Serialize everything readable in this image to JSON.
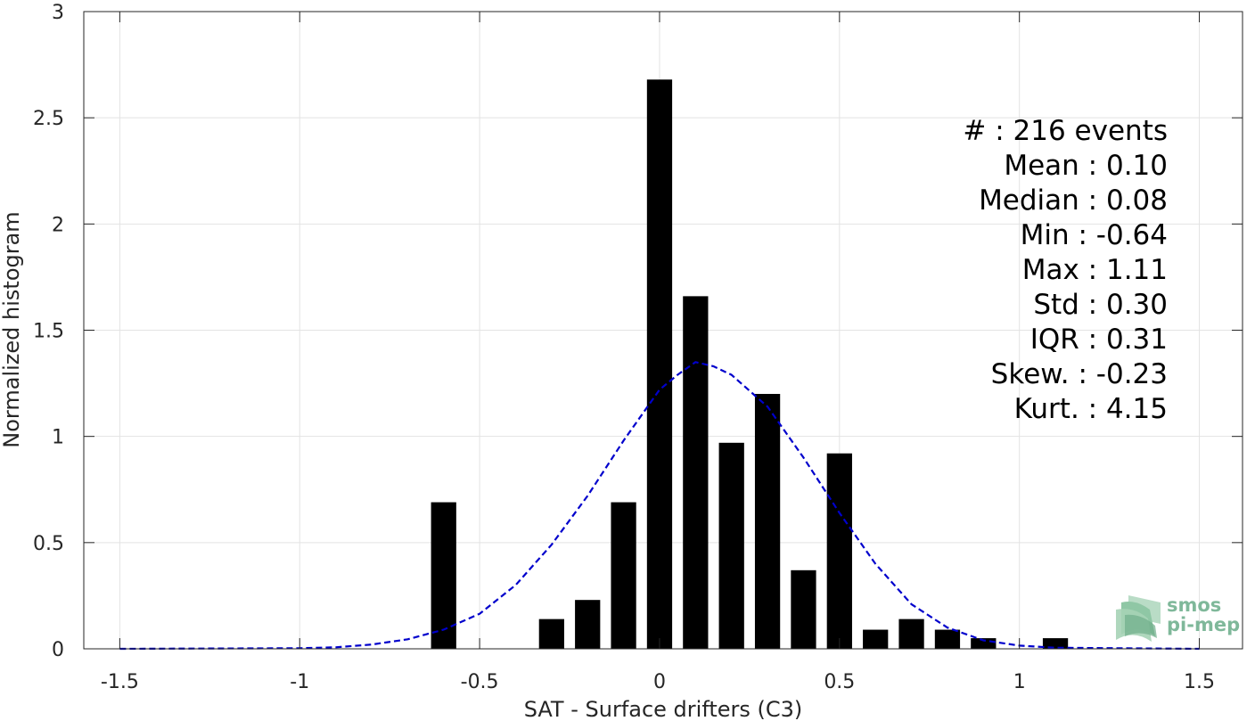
{
  "chart_data": {
    "type": "bar",
    "title": "",
    "xlabel": "SAT - Surface drifters (C3)",
    "ylabel": "Normalized histogram",
    "xlim": [
      -1.6,
      1.62
    ],
    "ylim": [
      0,
      3
    ],
    "grid": true,
    "x_ticks": [
      {
        "value": -1.5,
        "label": "-1.5"
      },
      {
        "value": -1,
        "label": "-1"
      },
      {
        "value": -0.5,
        "label": "-0.5"
      },
      {
        "value": 0,
        "label": "0"
      },
      {
        "value": 0.5,
        "label": "0.5"
      },
      {
        "value": 1,
        "label": "1"
      },
      {
        "value": 1.5,
        "label": "1.5"
      }
    ],
    "y_ticks": [
      {
        "value": 0,
        "label": "0"
      },
      {
        "value": 0.5,
        "label": "0.5"
      },
      {
        "value": 1,
        "label": "1"
      },
      {
        "value": 1.5,
        "label": "1.5"
      },
      {
        "value": 2,
        "label": "2"
      },
      {
        "value": 2.5,
        "label": "2.5"
      },
      {
        "value": 3,
        "label": "3"
      }
    ],
    "bar_width": 0.07,
    "bar_color": "#000000",
    "bars": [
      {
        "x": -0.6,
        "y": 0.69
      },
      {
        "x": -0.3,
        "y": 0.14
      },
      {
        "x": -0.2,
        "y": 0.23
      },
      {
        "x": -0.1,
        "y": 0.69
      },
      {
        "x": 0.0,
        "y": 2.68
      },
      {
        "x": 0.1,
        "y": 1.66
      },
      {
        "x": 0.2,
        "y": 0.97
      },
      {
        "x": 0.3,
        "y": 1.2
      },
      {
        "x": 0.4,
        "y": 0.37
      },
      {
        "x": 0.5,
        "y": 0.92
      },
      {
        "x": 0.6,
        "y": 0.09
      },
      {
        "x": 0.7,
        "y": 0.14
      },
      {
        "x": 0.8,
        "y": 0.09
      },
      {
        "x": 0.9,
        "y": 0.05
      },
      {
        "x": 1.1,
        "y": 0.05
      }
    ],
    "fit_curve": {
      "style": "dashed",
      "color": "#0000cc",
      "points": [
        [
          -1.5,
          0.0
        ],
        [
          -1.0,
          0.003
        ],
        [
          -0.9,
          0.007
        ],
        [
          -0.8,
          0.02
        ],
        [
          -0.7,
          0.045
        ],
        [
          -0.6,
          0.09
        ],
        [
          -0.5,
          0.165
        ],
        [
          -0.4,
          0.3
        ],
        [
          -0.3,
          0.49
        ],
        [
          -0.2,
          0.72
        ],
        [
          -0.1,
          0.98
        ],
        [
          0.0,
          1.22
        ],
        [
          0.05,
          1.29
        ],
        [
          0.1,
          1.35
        ],
        [
          0.15,
          1.33
        ],
        [
          0.2,
          1.29
        ],
        [
          0.3,
          1.14
        ],
        [
          0.4,
          0.9
        ],
        [
          0.5,
          0.64
        ],
        [
          0.6,
          0.4
        ],
        [
          0.7,
          0.21
        ],
        [
          0.8,
          0.1
        ],
        [
          0.9,
          0.04
        ],
        [
          1.0,
          0.015
        ],
        [
          1.1,
          0.005
        ],
        [
          1.5,
          0.0
        ]
      ]
    },
    "stats_lines": [
      "#  : 216 events",
      "Mean : 0.10",
      "Median : 0.08",
      "Min : -0.64",
      "Max : 1.11",
      "Std : 0.30",
      "IQR : 0.31",
      "Skew. : -0.23",
      "Kurt. : 4.15"
    ]
  },
  "logo": {
    "line1": "smos",
    "line2": "pi-mep",
    "color": "#7fb89a"
  }
}
